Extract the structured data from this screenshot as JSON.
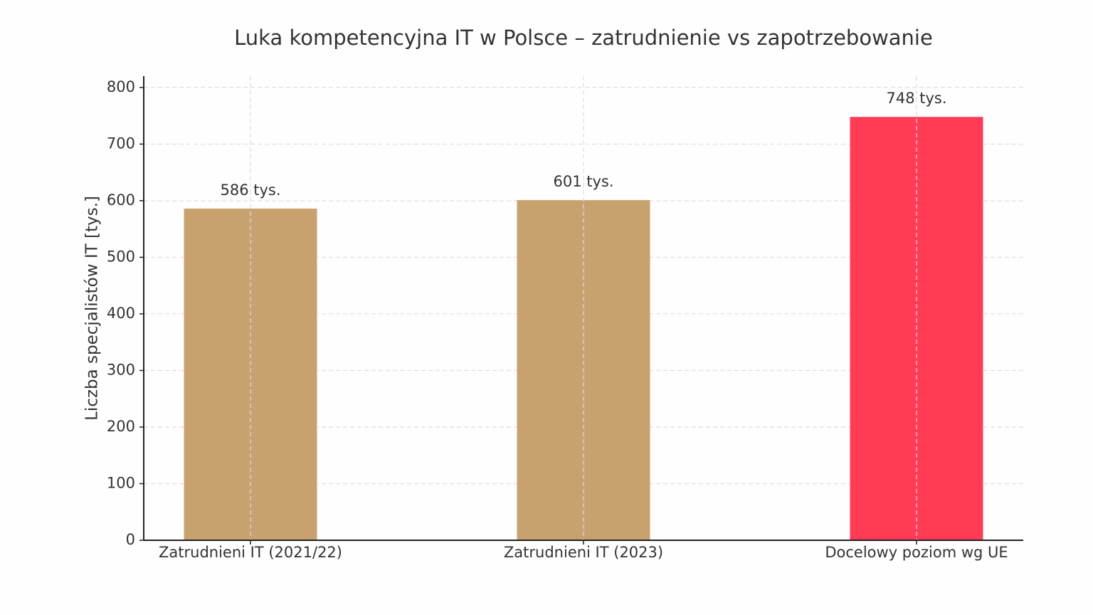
{
  "chart_data": {
    "type": "bar",
    "title": "Luka kompetencyjna IT w Polsce – zatrudnienie vs zapotrzebowanie",
    "y_label": "Liczba specjalistów IT [tys.]",
    "categories": [
      "Zatrudnieni IT (2021/22)",
      "Zatrudnieni IT (2023)",
      "Docelowy poziom wg UE"
    ],
    "values": [
      586,
      601,
      748
    ],
    "value_labels": [
      "586 tys.",
      "601 tys.",
      "748 tys."
    ],
    "colors": [
      "#c8a26e",
      "#c8a26e",
      "#ff3b55"
    ],
    "ylim": [
      0,
      820
    ],
    "yticks": [
      0,
      100,
      200,
      300,
      400,
      500,
      600,
      700,
      800
    ],
    "grid": true
  }
}
